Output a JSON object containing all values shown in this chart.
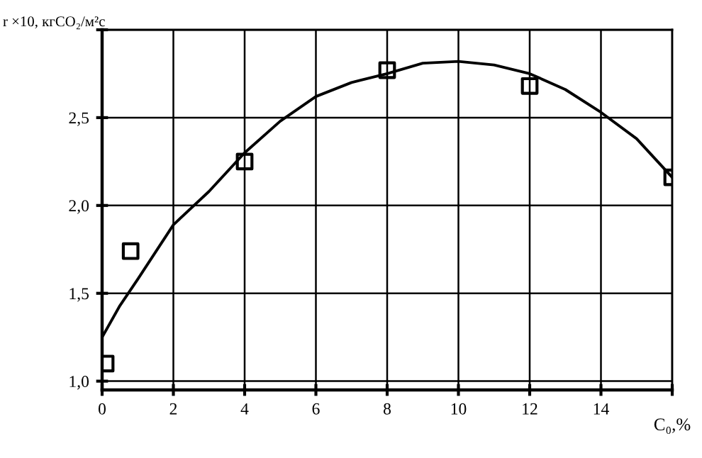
{
  "chart_data": {
    "type": "scatter",
    "xlabel": "C₀,%",
    "ylabel": "r ×10, кгCO₂/м²с",
    "grid": true,
    "marker": "square",
    "legend": false,
    "xlim": [
      0,
      16
    ],
    "xticks": [
      0,
      2,
      4,
      6,
      8,
      10,
      12,
      14,
      {
        "value": 16,
        "label": null
      }
    ],
    "ylim": [
      0.95,
      3.0
    ],
    "yticks": [
      {
        "value": 1.0,
        "label": "1,0"
      },
      {
        "value": 1.5,
        "label": "1,5"
      },
      {
        "value": 2.0,
        "label": "2,0"
      },
      {
        "value": 2.5,
        "label": "2,5"
      },
      {
        "value": 3.0,
        "label": null
      }
    ],
    "series": [
      {
        "color": "#000000",
        "x": [
          0.1,
          0.8,
          4.0,
          8.0,
          12.0,
          16.0
        ],
        "values": [
          1.1,
          1.74,
          2.25,
          2.77,
          2.68,
          2.16
        ]
      },
      {
        "type": "line",
        "color": "#000000",
        "marker": "none",
        "line_style": "solid",
        "x": [
          0,
          0.5,
          1,
          2,
          3,
          4,
          5,
          6,
          7,
          8,
          9,
          10,
          11,
          12,
          13,
          14,
          15,
          16
        ],
        "values": [
          1.25,
          1.43,
          1.58,
          1.89,
          2.08,
          2.3,
          2.48,
          2.62,
          2.7,
          2.75,
          2.81,
          2.82,
          2.8,
          2.75,
          2.66,
          2.53,
          2.38,
          2.16
        ]
      }
    ]
  }
}
